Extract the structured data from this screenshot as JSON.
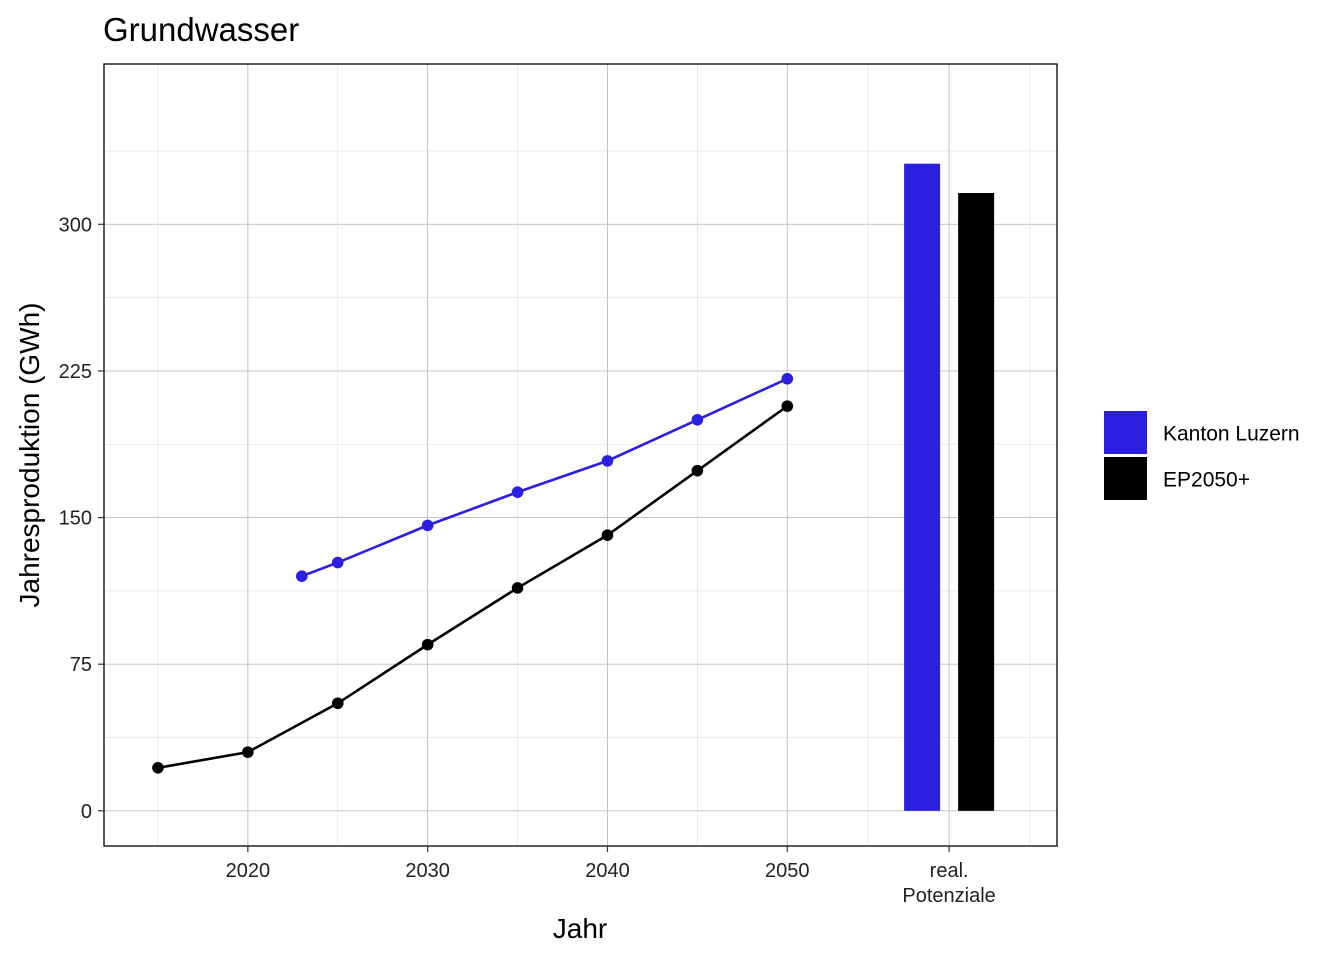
{
  "chart_data": {
    "type": "line",
    "title": "Grundwasser",
    "xlabel": "Jahr",
    "ylabel": "Jahresproduktion (GWh)",
    "grid": true,
    "legend_position": "right",
    "xlim": [
      2012,
      2065
    ],
    "ylim": [
      -18,
      382
    ],
    "x_ticks": [
      {
        "value": 2020,
        "label": "2020"
      },
      {
        "value": 2030,
        "label": "2030"
      },
      {
        "value": 2040,
        "label": "2040"
      },
      {
        "value": 2050,
        "label": "2050"
      },
      {
        "value": 2059,
        "label": "real.\nPotenziale"
      }
    ],
    "y_ticks": [
      0,
      75,
      150,
      225,
      300
    ],
    "series": [
      {
        "name": "Kanton Luzern",
        "color": "#2b1fe0",
        "x": [
          2023,
          2025,
          2030,
          2035,
          2040,
          2045,
          2050
        ],
        "y": [
          120,
          127,
          146,
          163,
          179,
          200,
          221
        ]
      },
      {
        "name": "EP2050+",
        "color": "#000000",
        "x": [
          2015,
          2020,
          2025,
          2030,
          2035,
          2040,
          2045,
          2050
        ],
        "y": [
          22,
          30,
          55,
          85,
          114,
          141,
          174,
          207
        ]
      }
    ],
    "bars": {
      "category": "real.\nPotenziale",
      "items": [
        {
          "series": "Kanton Luzern",
          "value": 331,
          "color": "#2b1fe0"
        },
        {
          "series": "EP2050+",
          "value": 316,
          "color": "#000000"
        }
      ]
    },
    "legend": [
      {
        "label": "Kanton Luzern",
        "color": "#2b1fe0"
      },
      {
        "label": "EP2050+",
        "color": "#000000"
      }
    ]
  }
}
